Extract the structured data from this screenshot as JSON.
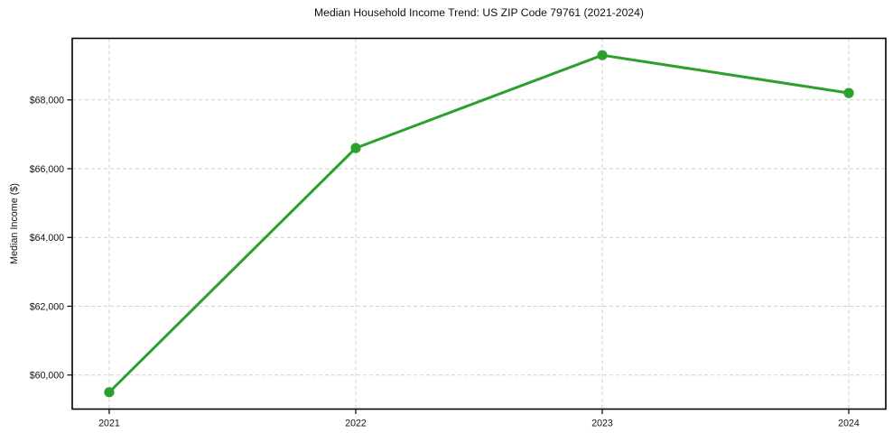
{
  "chart_data": {
    "type": "line",
    "title": "Median Household Income Trend: US ZIP Code 79761 (2021-2024)",
    "xlabel": "",
    "ylabel": "Median Income ($)",
    "x": [
      2021,
      2022,
      2023,
      2024
    ],
    "series": [
      {
        "name": "Median Household Income",
        "values": [
          59500,
          66600,
          69300,
          68200
        ]
      }
    ],
    "xticks": [
      {
        "value": 2021,
        "label": "2021"
      },
      {
        "value": 2022,
        "label": "2022"
      },
      {
        "value": 2023,
        "label": "2023"
      },
      {
        "value": 2024,
        "label": "2024"
      }
    ],
    "yticks": [
      {
        "value": 60000,
        "label": "$60,000"
      },
      {
        "value": 62000,
        "label": "$62,000"
      },
      {
        "value": 64000,
        "label": "$64,000"
      },
      {
        "value": 66000,
        "label": "$66,000"
      },
      {
        "value": 68000,
        "label": "$68,000"
      }
    ],
    "xlim": [
      2020.85,
      2024.15
    ],
    "ylim": [
      59010,
      69790
    ],
    "grid": true,
    "grid_style": "dashed",
    "legend": "none",
    "colors": {
      "line": "#2ca02c",
      "marker": "#2ca02c",
      "grid": "#cfcfcf",
      "spine": "#000000",
      "text": "#111111",
      "background": "#ffffff"
    }
  }
}
